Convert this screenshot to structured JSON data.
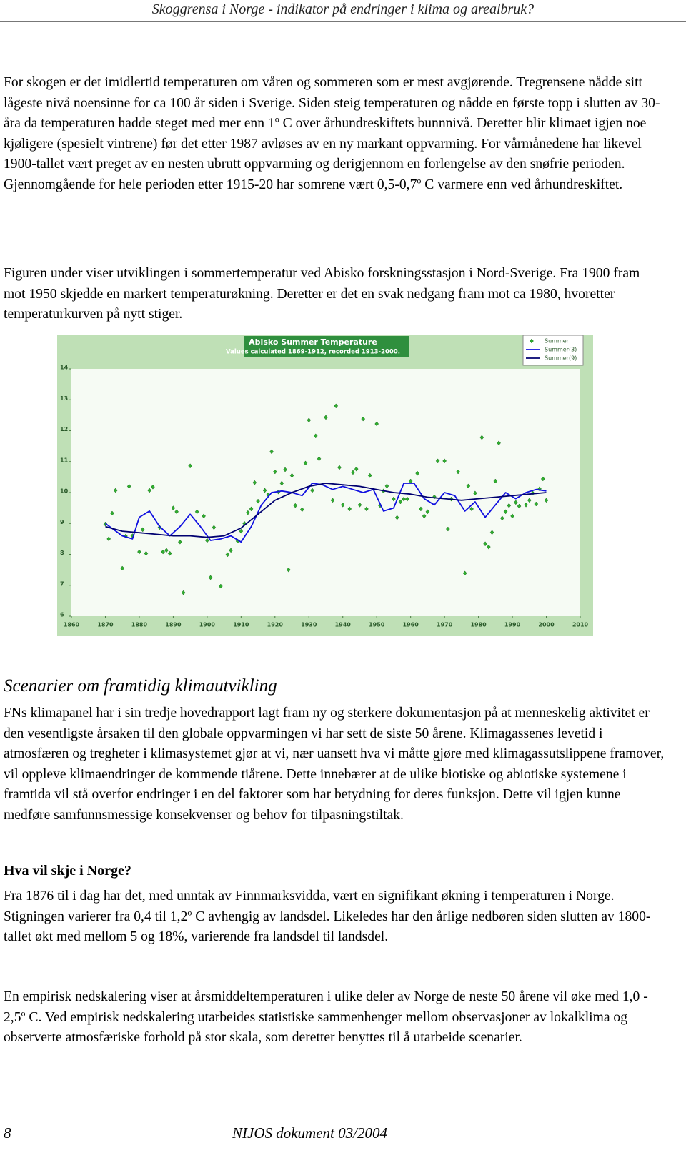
{
  "header": "Skoggrensa i Norge - indikator på endringer i klima og arealbruk?",
  "intro": [
    [
      "For skogen er det imidlertid temperaturen om våren og sommeren som er mest avgjørende. Tregrensene nådde sitt lågeste nivå noensinne for ca 100 år siden i Sverige. Siden steig temperaturen og nådde en første topp i slutten av 30- åra da temperaturen hadde steget med mer enn 1",
      "o",
      " C over århundreskiftets bunnnivå. Deretter blir klimaet igjen noe kjøligere (spesielt vintrene) før det etter 1987 avløses av en ny markant oppvarming. For vårmånedene har likevel 1900-tallet vært preget av en nesten ubrutt oppvarming og derigjennom en forlengelse av den snøfrie perioden. Gjennomgående for hele perioden etter 1915-20 har somrene vært 0,5-0,7",
      "o",
      " C varmere enn ved århundreskiftet."
    ],
    [
      "Figuren under viser utviklingen i sommertemperatur ved Abisko forskningsstasjon i Nord-Sverige. Fra 1900 fram mot 1950 skjedde en markert temperaturøkning. Deretter er det en svak nedgang fram mot ca 1980, hvoretter temperaturkurven på nytt stiger."
    ]
  ],
  "chart_data": {
    "type": "scatter",
    "title": "Abisko Summer Temperature",
    "subtitle": "Values calculated 1869-1912, recorded 1913-2000.",
    "xlim": [
      1860,
      2010
    ],
    "xticks": [
      1860,
      1870,
      1880,
      1890,
      1900,
      1910,
      1920,
      1930,
      1940,
      1950,
      1960,
      1970,
      1980,
      1990,
      2000,
      2010
    ],
    "ylim": [
      6,
      14
    ],
    "yticks": [
      6,
      7,
      8,
      9,
      10,
      11,
      12,
      13,
      14
    ],
    "legend": "top-right",
    "series": [
      {
        "name": "Summer",
        "type": "scatter",
        "color": "#2fae2f",
        "x": [
          1870,
          1871,
          1872,
          1873,
          1875,
          1876,
          1877,
          1878,
          1880,
          1881,
          1882,
          1883,
          1884,
          1886,
          1887,
          1888,
          1889,
          1890,
          1891,
          1892,
          1893,
          1895,
          1897,
          1899,
          1900,
          1901,
          1902,
          1904,
          1906,
          1907,
          1909,
          1910,
          1911,
          1912,
          1913,
          1914,
          1915,
          1917,
          1918,
          1919,
          1920,
          1921,
          1922,
          1923,
          1924,
          1925,
          1926,
          1928,
          1929,
          1930,
          1931,
          1932,
          1933,
          1935,
          1937,
          1938,
          1939,
          1940,
          1942,
          1943,
          1944,
          1945,
          1946,
          1947,
          1948,
          1950,
          1951,
          1952,
          1953,
          1955,
          1956,
          1957,
          1958,
          1959,
          1960,
          1962,
          1963,
          1964,
          1965,
          1967,
          1968,
          1970,
          1971,
          1972,
          1974,
          1976,
          1977,
          1978,
          1979,
          1981,
          1982,
          1983,
          1984,
          1985,
          1986,
          1987,
          1988,
          1989,
          1990,
          1991,
          1992,
          1994,
          1995,
          1996,
          1997,
          1998,
          1999,
          2000
        ],
        "values": [
          8.98,
          8.5,
          9.33,
          10.07,
          7.55,
          8.59,
          10.2,
          8.6,
          8.08,
          8.8,
          8.03,
          10.07,
          10.18,
          8.87,
          8.08,
          8.13,
          8.03,
          9.5,
          9.38,
          8.4,
          6.76,
          10.86,
          9.38,
          9.24,
          8.45,
          7.25,
          8.87,
          6.97,
          7.99,
          8.13,
          8.43,
          8.75,
          9.0,
          9.35,
          9.47,
          10.32,
          9.72,
          10.07,
          9.93,
          11.32,
          10.67,
          10.02,
          10.3,
          10.74,
          7.5,
          10.55,
          9.58,
          9.45,
          10.95,
          12.34,
          10.07,
          11.83,
          11.09,
          12.43,
          9.75,
          12.8,
          10.81,
          9.6,
          9.47,
          10.65,
          10.76,
          9.6,
          12.38,
          9.47,
          10.55,
          12.22,
          9.58,
          10.05,
          10.21,
          9.79,
          9.19,
          9.7,
          9.79,
          9.79,
          10.37,
          10.62,
          9.47,
          9.24,
          9.38,
          9.86,
          11.02,
          11.02,
          8.82,
          9.79,
          10.67,
          7.39,
          10.21,
          9.47,
          9.98,
          11.78,
          8.34,
          8.24,
          8.71,
          10.37,
          11.6,
          9.17,
          9.38,
          9.58,
          9.24,
          9.68,
          9.56,
          9.6,
          9.75,
          9.98,
          9.63,
          10.12,
          10.44,
          9.75
        ]
      },
      {
        "name": "Summer(3)",
        "type": "line",
        "color": "#1010e0",
        "x": [
          1870,
          1875,
          1878,
          1880,
          1883,
          1886,
          1889,
          1892,
          1895,
          1898,
          1901,
          1904,
          1907,
          1910,
          1913,
          1916,
          1919,
          1922,
          1925,
          1928,
          1931,
          1934,
          1937,
          1940,
          1943,
          1946,
          1949,
          1952,
          1955,
          1958,
          1961,
          1964,
          1967,
          1970,
          1973,
          1976,
          1979,
          1982,
          1985,
          1988,
          1991,
          1994,
          1997,
          2000
        ],
        "values": [
          9.0,
          8.6,
          8.5,
          9.2,
          9.4,
          8.9,
          8.6,
          8.9,
          9.3,
          8.9,
          8.45,
          8.5,
          8.6,
          8.4,
          8.9,
          9.6,
          10.0,
          10.05,
          10.0,
          9.9,
          10.3,
          10.25,
          10.1,
          10.2,
          10.1,
          10.0,
          10.1,
          9.4,
          9.5,
          10.3,
          10.3,
          9.8,
          9.6,
          10.0,
          9.9,
          9.4,
          9.7,
          9.2,
          9.6,
          10.0,
          9.8,
          10.0,
          10.1,
          10.05
        ]
      },
      {
        "name": "Summer(9)",
        "type": "line",
        "color": "#000070",
        "x": [
          1870,
          1875,
          1880,
          1885,
          1890,
          1895,
          1900,
          1905,
          1910,
          1915,
          1920,
          1925,
          1930,
          1935,
          1940,
          1945,
          1950,
          1955,
          1960,
          1965,
          1970,
          1975,
          1980,
          1985,
          1990,
          1995,
          2000
        ],
        "values": [
          8.9,
          8.75,
          8.7,
          8.65,
          8.6,
          8.6,
          8.55,
          8.6,
          8.85,
          9.3,
          9.75,
          10.0,
          10.2,
          10.3,
          10.25,
          10.2,
          10.1,
          10.0,
          9.95,
          9.85,
          9.8,
          9.75,
          9.8,
          9.85,
          9.9,
          9.95,
          10.0
        ]
      }
    ]
  },
  "section": {
    "title": "Scenarier om framtidig klimautvikling",
    "paragraphs": [
      [
        "FNs klimapanel har i sin tredje hovedrapport lagt fram ny og sterkere dokumentasjon på at menneskelig aktivitet er den vesentligste årsaken til den globale oppvarmingen vi har sett de siste 50 årene. Klimagassenes levetid i atmosfæren og tregheter i klimasystemet gjør at vi, nær uansett hva vi måtte gjøre med klimagassutslippene framover, vil oppleve klimaendringer de kommende tiårene. Dette innebærer at de ulike biotiske og abiotiske systemene i framtida vil stå overfor endringer i en del faktorer som har betydning for deres funksjon. Dette vil igjen kunne medføre samfunnsmessige konsekvenser og behov for tilpasningstiltak."
      ]
    ],
    "subheading": "Hva vil skje i Norge?",
    "sub_paragraphs": [
      [
        "Fra 1876 til i dag har det, med unntak av Finnmarksvidda, vært en signifikant økning i temperaturen i Norge. Stigningen varierer fra 0,4 til 1,2",
        "o",
        " C avhengig av landsdel. Likeledes har den årlige nedbøren siden slutten av 1800-tallet økt med mellom 5 og 18%, varierende fra landsdel til landsdel."
      ],
      [
        "En empirisk nedskalering viser at årsmiddeltemperaturen i ulike deler av Norge de neste 50 årene vil øke med 1,0 - 2,5",
        "o",
        " C. Ved empirisk nedskalering utarbeides statistiske sammenhenger mellom observasjoner av lokalklima og observerte atmosfæriske forhold på stor skala, som deretter benyttes til å utarbeide scenarier."
      ]
    ]
  },
  "footer": {
    "page": "8",
    "doc": "NIJOS dokument 03/2004"
  }
}
